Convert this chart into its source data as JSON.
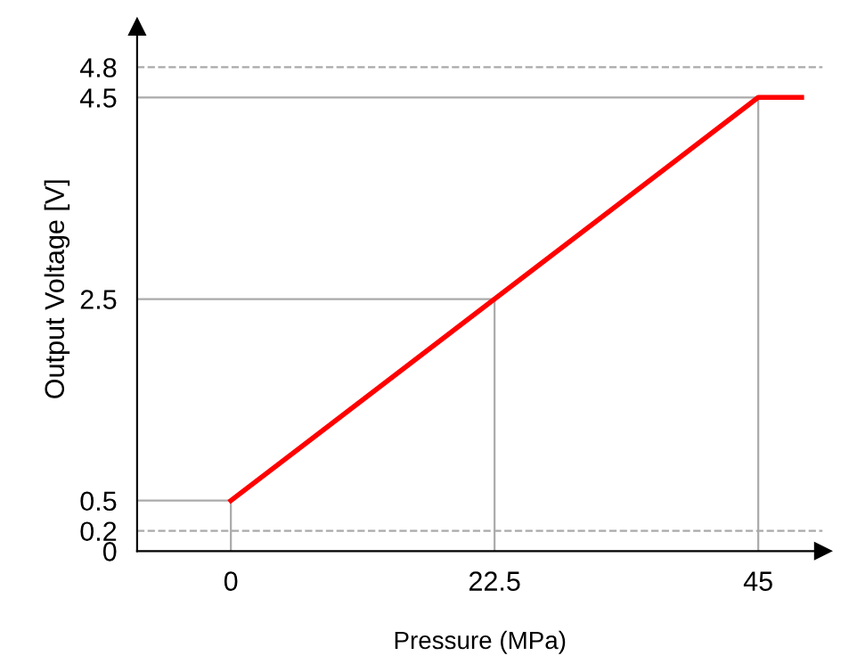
{
  "chart_data": {
    "type": "line",
    "xlabel": "Pressure (MPa)",
    "ylabel": "Output Voltage [V]",
    "x": [
      0,
      45,
      48.7
    ],
    "series": [
      {
        "color": "#ff0000",
        "values": [
          0.5,
          4.5,
          4.5
        ]
      }
    ],
    "xlim": [
      -8,
      50.5
    ],
    "ylim": [
      0,
      5.2
    ],
    "xticks": [
      0,
      22.5,
      45
    ],
    "yticks": [
      0,
      0.2,
      0.5,
      2.5,
      4.5,
      4.8
    ],
    "ref_lines": [
      {
        "axis": "y",
        "value": 4.8,
        "color": "#aaaaaa",
        "line_style": "dashed"
      },
      {
        "axis": "y",
        "value": 0.2,
        "color": "#aaaaaa",
        "line_style": "dashed"
      },
      {
        "axis": "y",
        "value": 4.5,
        "color": "#aaaaaa",
        "line_style": "solid"
      },
      {
        "axis": "y",
        "value": 2.5,
        "color": "#aaaaaa",
        "line_style": "solid"
      },
      {
        "axis": "y",
        "value": 0.5,
        "color": "#aaaaaa",
        "line_style": "solid"
      },
      {
        "axis": "x",
        "value": 0,
        "color": "#aaaaaa",
        "line_style": "solid"
      },
      {
        "axis": "x",
        "value": 22.5,
        "color": "#aaaaaa",
        "line_style": "solid"
      },
      {
        "axis": "x",
        "value": 45,
        "color": "#aaaaaa",
        "line_style": "solid"
      }
    ],
    "grid": false,
    "legend": false,
    "marker": "none",
    "line_style": "solid"
  }
}
